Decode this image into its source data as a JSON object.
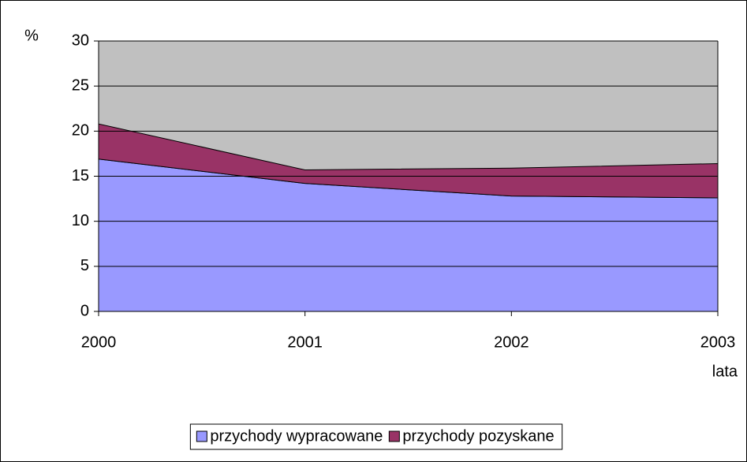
{
  "chart_data": {
    "type": "stacked_area",
    "y_label": "%",
    "x_label": "lata",
    "categories": [
      "2000",
      "2001",
      "2002",
      "2003"
    ],
    "series": [
      {
        "name": "przychody wypracowane",
        "color": "#9999ff",
        "values": [
          16.9,
          14.2,
          12.8,
          12.6
        ]
      },
      {
        "name": "przychody pozyskane",
        "color": "#993366",
        "values": [
          3.9,
          1.5,
          3.1,
          3.8
        ]
      }
    ],
    "ylim": [
      0,
      30
    ],
    "yticks": [
      0,
      5,
      10,
      15,
      20,
      25,
      30
    ],
    "grid": true,
    "plot_background": "#c0c0c0",
    "legend": "bottom"
  }
}
